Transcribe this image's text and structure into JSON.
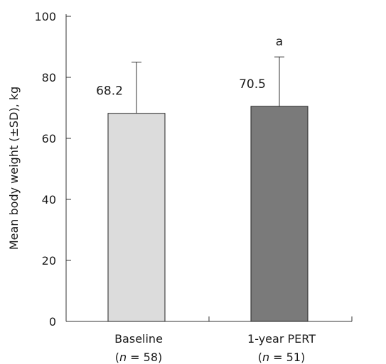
{
  "chart_data": {
    "type": "bar",
    "categories": [
      "Baseline",
      "1-year PERT"
    ],
    "category_sublabels": [
      {
        "prefix": "(",
        "var": "n",
        "rest": " = 58)"
      },
      {
        "prefix": "(",
        "var": "n",
        "rest": " = 51)"
      }
    ],
    "values": [
      68.2,
      70.5
    ],
    "error_upper": [
      85.0,
      86.7
    ],
    "data_labels": [
      "68.2",
      "70.5"
    ],
    "annotations": [
      {
        "category": 1,
        "text": "a"
      }
    ],
    "bar_colors": [
      "#dcdcdc",
      "#7a7a7a"
    ],
    "ylabel": "Mean body weight (±SD), kg",
    "ylim": [
      0,
      100
    ],
    "yticks": [
      0,
      20,
      40,
      60,
      80,
      100
    ],
    "grid": false
  }
}
